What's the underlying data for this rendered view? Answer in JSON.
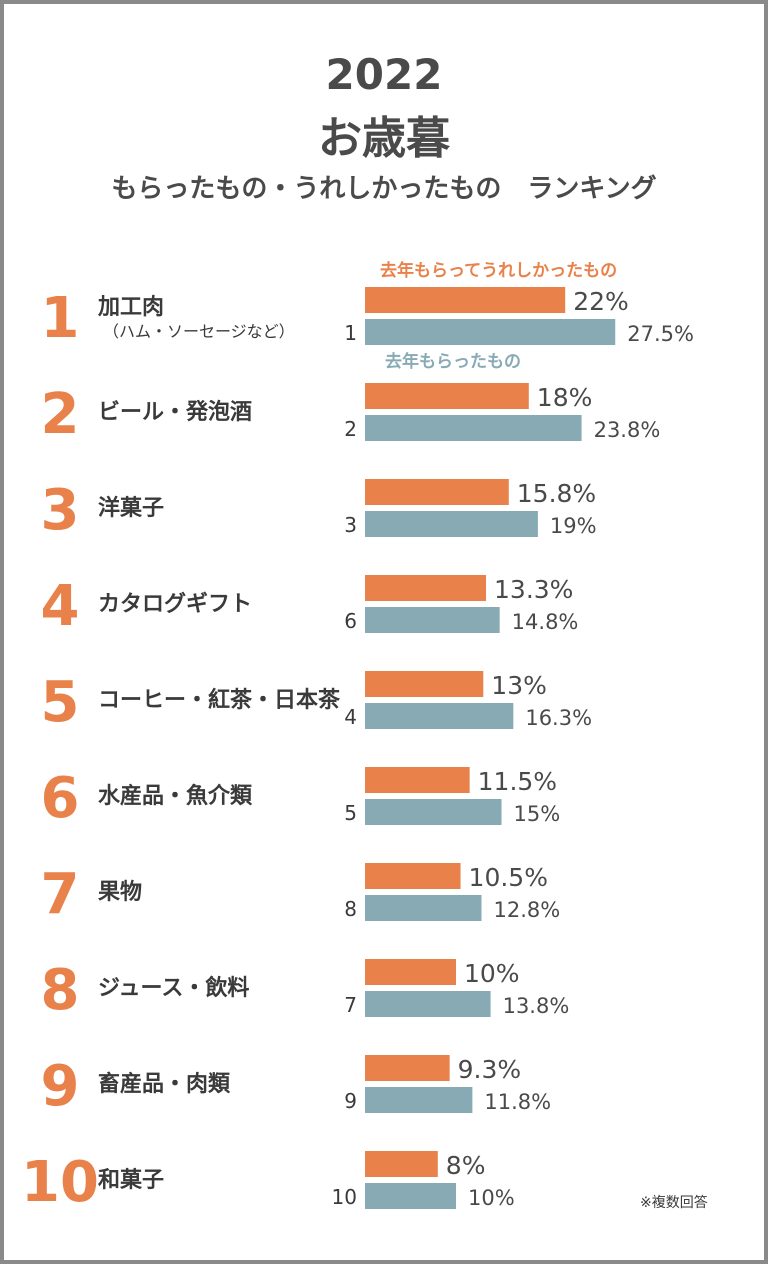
{
  "title": {
    "year": "2022",
    "main": "お歳暮",
    "sub": "もらったもの・うれしかったもの　ランキング"
  },
  "footnote": "※複数回答",
  "colors": {
    "this_year": "#e8814a",
    "last_year": "#87aab5",
    "rank": "#e8814a",
    "text": "#3a3a3a"
  },
  "chart_data": {
    "type": "bar",
    "orientation": "horizontal",
    "unit": "%",
    "xlim": [
      0,
      30
    ],
    "series": [
      {
        "name": "去年もらってうれしかったもの",
        "color": "#e8814a"
      },
      {
        "name": "去年もらったもの",
        "color": "#87aab5"
      }
    ],
    "items": [
      {
        "rank": "1",
        "label": "加工肉",
        "sublabel": "（ハム・ソーセージなど）",
        "happy": 22,
        "happy_text": "22%",
        "received": 27.5,
        "received_text": "27.5%",
        "received_rank": "1"
      },
      {
        "rank": "2",
        "label": "ビール・発泡酒",
        "sublabel": "",
        "happy": 18,
        "happy_text": "18%",
        "received": 23.8,
        "received_text": "23.8%",
        "received_rank": "2"
      },
      {
        "rank": "3",
        "label": "洋菓子",
        "sublabel": "",
        "happy": 15.8,
        "happy_text": "15.8%",
        "received": 19,
        "received_text": "19%",
        "received_rank": "3"
      },
      {
        "rank": "4",
        "label": "カタログギフト",
        "sublabel": "",
        "happy": 13.3,
        "happy_text": "13.3%",
        "received": 14.8,
        "received_text": "14.8%",
        "received_rank": "6"
      },
      {
        "rank": "5",
        "label": "コーヒー・紅茶・日本茶",
        "sublabel": "",
        "happy": 13,
        "happy_text": "13%",
        "received": 16.3,
        "received_text": "16.3%",
        "received_rank": "4"
      },
      {
        "rank": "6",
        "label": "水産品・魚介類",
        "sublabel": "",
        "happy": 11.5,
        "happy_text": "11.5%",
        "received": 15,
        "received_text": "15%",
        "received_rank": "5"
      },
      {
        "rank": "7",
        "label": "果物",
        "sublabel": "",
        "happy": 10.5,
        "happy_text": "10.5%",
        "received": 12.8,
        "received_text": "12.8%",
        "received_rank": "8"
      },
      {
        "rank": "8",
        "label": "ジュース・飲料",
        "sublabel": "",
        "happy": 10,
        "happy_text": "10%",
        "received": 13.8,
        "received_text": "13.8%",
        "received_rank": "7"
      },
      {
        "rank": "9",
        "label": "畜産品・肉類",
        "sublabel": "",
        "happy": 9.3,
        "happy_text": "9.3%",
        "received": 11.8,
        "received_text": "11.8%",
        "received_rank": "9"
      },
      {
        "rank": "10",
        "label": "和菓子",
        "sublabel": "",
        "happy": 8,
        "happy_text": "8%",
        "received": 10,
        "received_text": "10%",
        "received_rank": "10"
      }
    ]
  }
}
